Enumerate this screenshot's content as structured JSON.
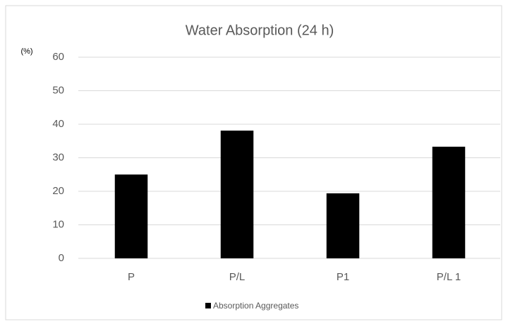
{
  "chart_data": {
    "type": "bar",
    "title": "Water Absorption (24 h)",
    "y_label": "(%)",
    "categories": [
      "P",
      "P/L",
      "P1",
      "P/L 1"
    ],
    "series": [
      {
        "name": "Absorption Aggregates",
        "color": "#000000",
        "values": [
          25,
          38.1,
          19.4,
          33.3
        ]
      }
    ],
    "ylim": [
      0,
      60
    ],
    "yticks": [
      0,
      10,
      20,
      30,
      40,
      50,
      60
    ],
    "grid": true,
    "legend": "bottom"
  }
}
